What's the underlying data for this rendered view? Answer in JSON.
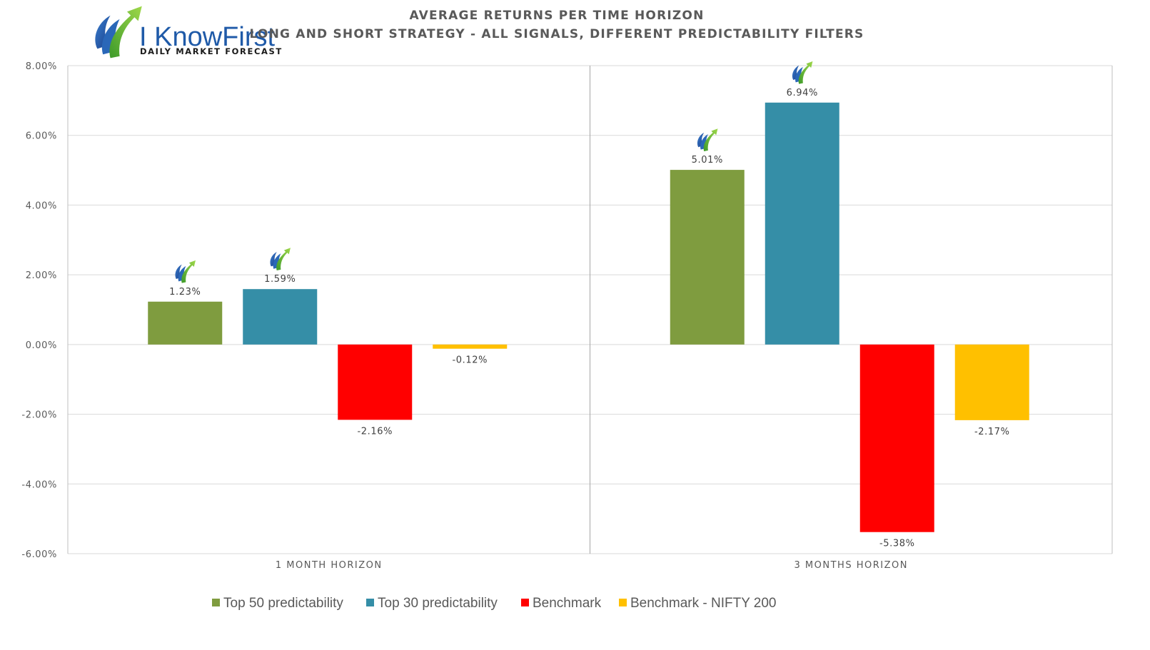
{
  "logo": {
    "brand": "I KnowFirst",
    "tagline": "Daily Market Forecast"
  },
  "chart_data": {
    "type": "bar",
    "title": "AVERAGE RETURNS PER TIME HORIZON",
    "subtitle": "LONG AND SHORT STRATEGY - ALL SIGNALS, DIFFERENT PREDICTABILITY FILTERS",
    "categories": [
      "1 MONTH HORIZON",
      "3 MONTHS HORIZON"
    ],
    "series": [
      {
        "name": "Top 50 predictability",
        "color": "#7f9c3f",
        "values": [
          1.23,
          5.01
        ],
        "labels": [
          "1.23%",
          "5.01%"
        ]
      },
      {
        "name": "Top 30 predictability",
        "color": "#358ea7",
        "values": [
          1.59,
          6.94
        ],
        "labels": [
          "1.59%",
          "6.94%"
        ]
      },
      {
        "name": "Benchmark",
        "color": "#ff0000",
        "values": [
          -2.16,
          -5.38
        ],
        "labels": [
          "-2.16%",
          "-5.38%"
        ]
      },
      {
        "name": "Benchmark - NIFTY 200",
        "color": "#ffc000",
        "values": [
          -0.12,
          -2.17
        ],
        "labels": [
          "-0.12%",
          "-2.17%"
        ]
      }
    ],
    "ylim": [
      -6,
      8
    ],
    "yticks": [
      8,
      6,
      4,
      2,
      0,
      -2,
      -4,
      -6
    ],
    "ytick_labels": [
      "8.00%",
      "6.00%",
      "4.00%",
      "2.00%",
      "0.00%",
      "-2.00%",
      "-4.00%",
      "-6.00%"
    ],
    "xlabel": "",
    "ylabel": "",
    "grid": true,
    "legend_position": "bottom",
    "marker_icon": "iknowfirst-logo-icon",
    "marker_series": [
      "Top 50 predictability",
      "Top 30 predictability"
    ]
  }
}
